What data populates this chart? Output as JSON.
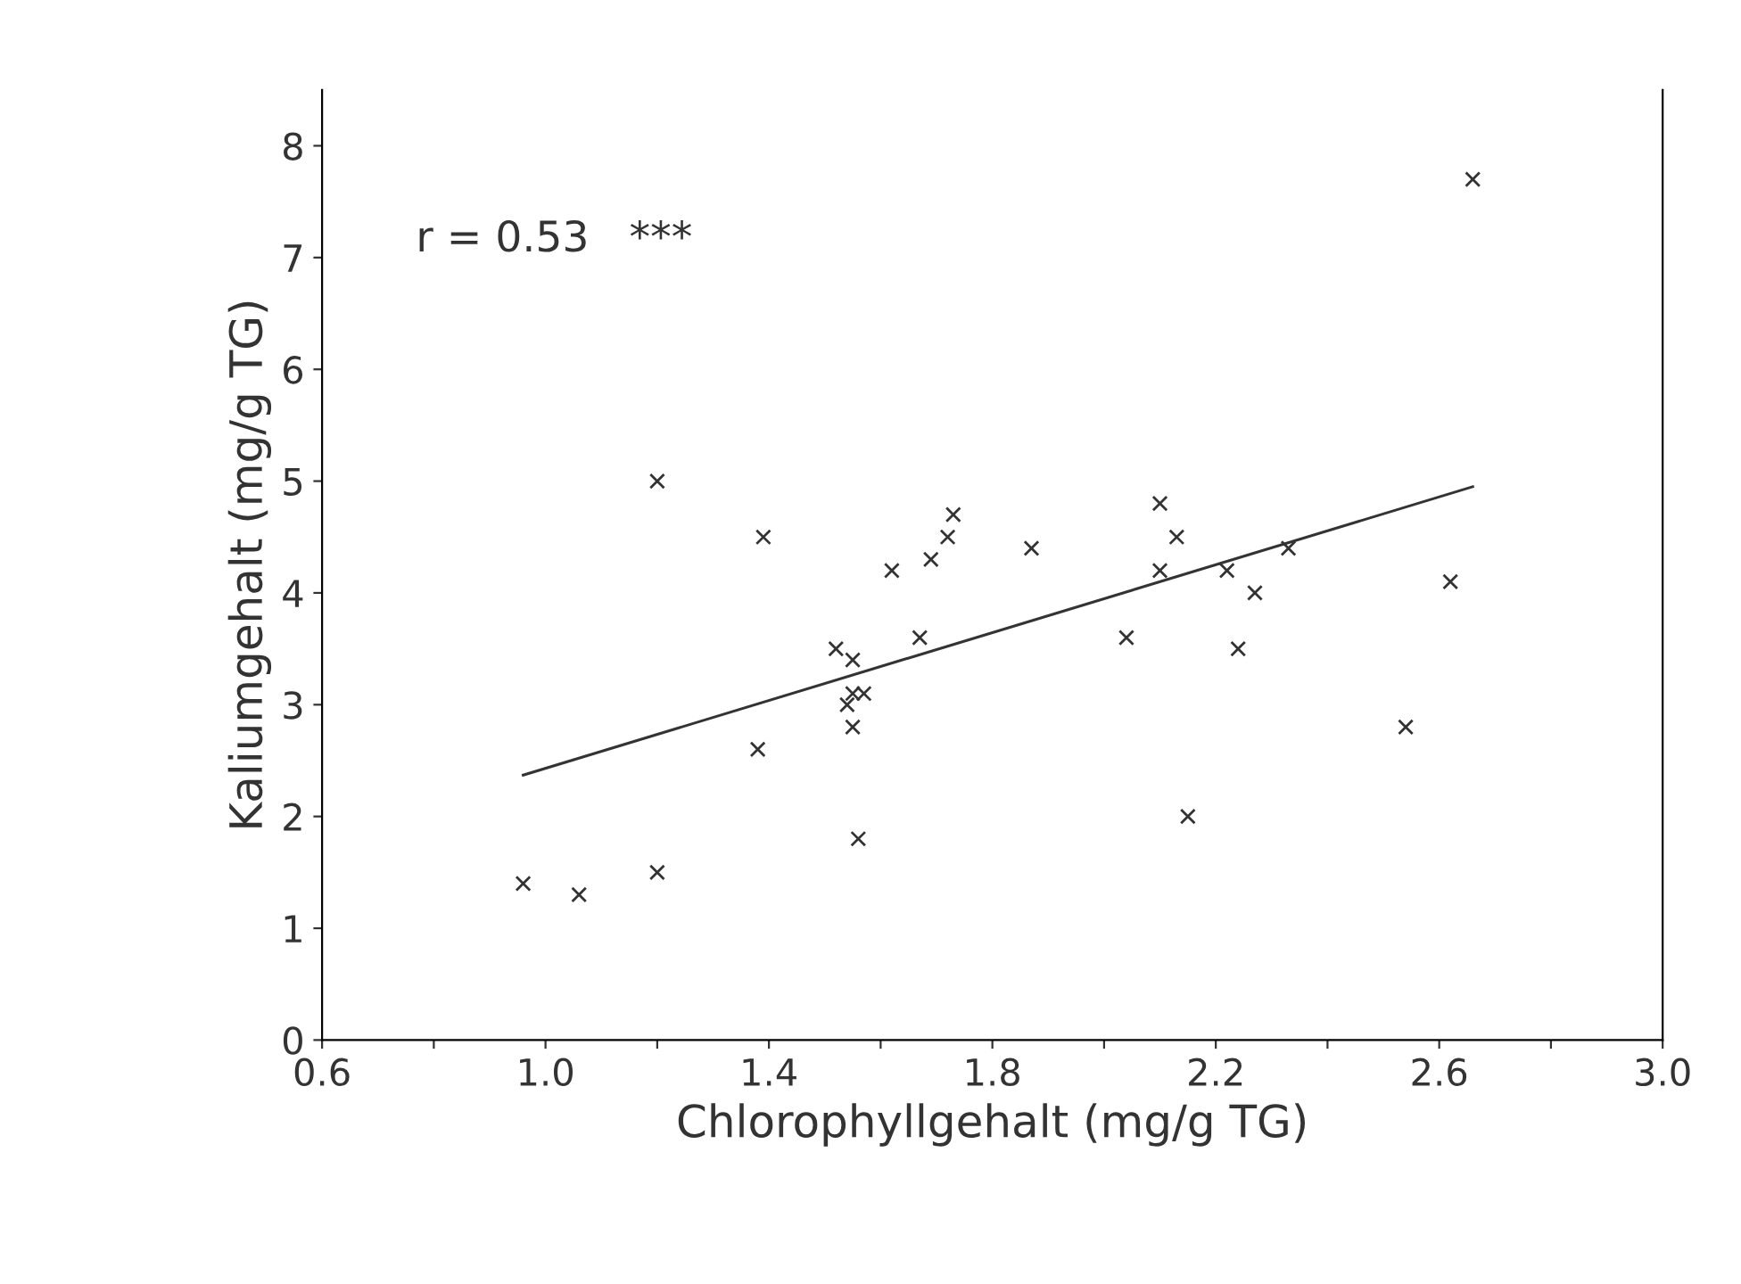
{
  "chart_data": {
    "type": "scatter",
    "xlabel": "Chlorophyllgehalt (mg/g TG)",
    "ylabel": "Kaliumgehalt (mg/g TG)",
    "annotations": [
      "r = 0.53   ***"
    ],
    "xlim": [
      0.6,
      3.0
    ],
    "ylim": [
      0,
      8.5
    ],
    "xticks": [
      0.6,
      {
        "value": 0.8,
        "label": null
      },
      {
        "value": 1,
        "label": "1.0"
      },
      {
        "value": 1.2,
        "label": null
      },
      1.4,
      {
        "value": 1.6,
        "label": null
      },
      1.8,
      {
        "value": 2.0,
        "label": null
      },
      2.2,
      {
        "value": 2.4,
        "label": null
      },
      2.6,
      {
        "value": 2.8,
        "label": null
      },
      {
        "value": 3,
        "label": "3.0"
      }
    ],
    "yticks": [
      0,
      1,
      2,
      3,
      4,
      5,
      6,
      7,
      8
    ],
    "grid": false,
    "series": [
      {
        "marker": "cross",
        "color": "#333333",
        "x": [
          0.96,
          1.06,
          1.2,
          1.2,
          1.38,
          1.39,
          1.52,
          1.54,
          1.55,
          1.55,
          1.57,
          1.55,
          1.56,
          1.62,
          1.67,
          1.69,
          1.72,
          1.73,
          1.87,
          2.04,
          2.1,
          2.1,
          2.13,
          2.15,
          2.22,
          2.24,
          2.27,
          2.33,
          2.54,
          2.62,
          2.66
        ],
        "values": [
          1.4,
          1.3,
          1.5,
          5.0,
          2.6,
          4.5,
          3.5,
          3.0,
          3.4,
          3.1,
          3.1,
          2.8,
          1.8,
          4.2,
          3.6,
          4.3,
          4.5,
          4.7,
          4.4,
          3.6,
          4.8,
          4.2,
          4.5,
          2.0,
          4.2,
          3.5,
          4.0,
          4.4,
          2.8,
          4.1,
          7.7
        ]
      },
      {
        "type": "line",
        "color": "#333333",
        "x": [
          0.96,
          2.66
        ],
        "values": [
          2.37,
          4.95
        ]
      }
    ]
  }
}
